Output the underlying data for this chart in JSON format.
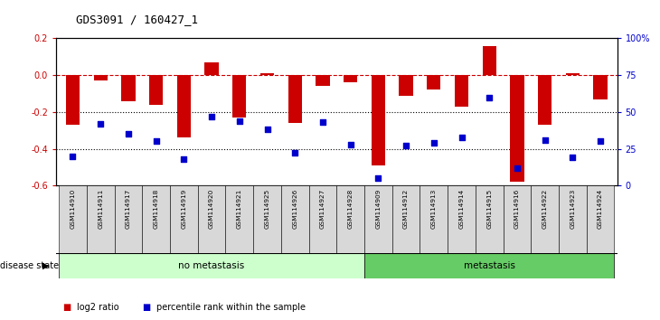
{
  "title": "GDS3091 / 160427_1",
  "samples": [
    "GSM114910",
    "GSM114911",
    "GSM114917",
    "GSM114918",
    "GSM114919",
    "GSM114920",
    "GSM114921",
    "GSM114925",
    "GSM114926",
    "GSM114927",
    "GSM114928",
    "GSM114909",
    "GSM114912",
    "GSM114913",
    "GSM114914",
    "GSM114915",
    "GSM114916",
    "GSM114922",
    "GSM114923",
    "GSM114924"
  ],
  "log2_ratio": [
    -0.27,
    -0.03,
    -0.14,
    -0.16,
    -0.34,
    0.07,
    -0.23,
    0.01,
    -0.26,
    -0.06,
    -0.04,
    -0.49,
    -0.11,
    -0.08,
    -0.17,
    0.16,
    -0.58,
    -0.27,
    0.01,
    -0.13
  ],
  "percentile_rank": [
    20,
    42,
    35,
    30,
    18,
    47,
    44,
    38,
    22,
    43,
    28,
    5,
    27,
    29,
    33,
    60,
    12,
    31,
    19,
    30
  ],
  "no_metastasis_count": 11,
  "metastasis_count": 9,
  "bar_color": "#cc0000",
  "dot_color": "#0000cc",
  "ylim_left": [
    -0.6,
    0.2
  ],
  "ylim_right": [
    0,
    100
  ],
  "yticks_left": [
    -0.6,
    -0.4,
    -0.2,
    0.0,
    0.2
  ],
  "yticks_right": [
    0,
    25,
    50,
    75,
    100
  ],
  "ytick_labels_right": [
    "0",
    "25",
    "50",
    "75",
    "100%"
  ],
  "hline_y": 0.0,
  "dotted_lines": [
    -0.2,
    -0.4
  ],
  "bg_color": "#ffffff",
  "plot_bg_color": "#ffffff",
  "no_metastasis_color": "#ccffcc",
  "metastasis_color": "#66cc66",
  "legend_items": [
    {
      "label": "log2 ratio",
      "color": "#cc0000"
    },
    {
      "label": "percentile rank within the sample",
      "color": "#0000cc"
    }
  ],
  "bar_width": 0.5
}
